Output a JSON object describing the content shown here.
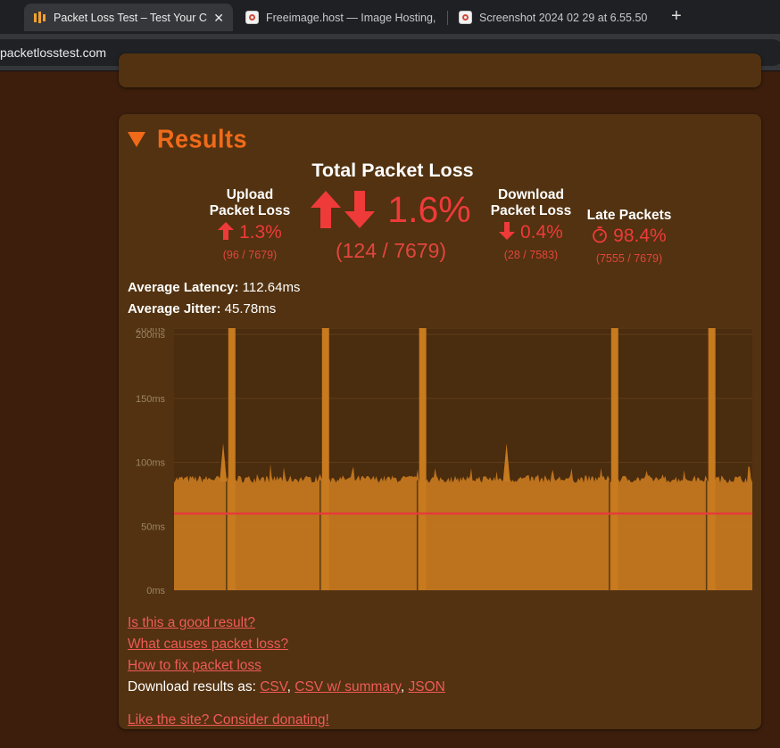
{
  "browser": {
    "tabs": [
      {
        "title": "Packet Loss Test – Test Your C",
        "active": true
      },
      {
        "title": "Freeimage.host — Image Hosting,",
        "active": false
      },
      {
        "title": "Screenshot 2024 02 29 at 6.55.50",
        "active": false
      }
    ],
    "close_symbol": "✕",
    "new_tab_symbol": "+",
    "url": "packetlosstest.com"
  },
  "results": {
    "heading": "Results",
    "total": {
      "label": "Total Packet Loss",
      "percent": "1.6%",
      "fraction": "(124 / 7679)"
    },
    "upload": {
      "label_line1": "Upload",
      "label_line2": "Packet Loss",
      "percent": "1.3%",
      "fraction": "(96 / 7679)"
    },
    "download": {
      "label_line1": "Download",
      "label_line2": "Packet Loss",
      "percent": "0.4%",
      "fraction": "(28 / 7583)"
    },
    "late": {
      "label": "Late Packets",
      "percent": "98.4%",
      "fraction": "(7555 / 7679)"
    },
    "average_latency": {
      "label": "Average Latency:",
      "value": "112.64ms"
    },
    "average_jitter": {
      "label": "Average Jitter:",
      "value": "45.78ms"
    }
  },
  "chart_data": {
    "type": "area",
    "y_tick_labels": [
      "0ms",
      "50ms",
      "100ms",
      "150ms",
      "200ms",
      "205ms"
    ],
    "y_ticks": [
      0,
      50,
      100,
      150,
      200,
      205
    ],
    "ylim": [
      0,
      205
    ],
    "typical_latency_ms": 86,
    "threshold_line_ms": 60,
    "spikes": [
      {
        "position": 0.1,
        "value": 205
      },
      {
        "position": 0.262,
        "value": 205
      },
      {
        "position": 0.43,
        "value": 205
      },
      {
        "position": 0.762,
        "value": 205
      },
      {
        "position": 0.93,
        "value": 205
      }
    ],
    "series_color": "#c77a1e",
    "threshold_color": "#e53b3b"
  },
  "links": {
    "good_result": "Is this a good result?",
    "causes": "What causes packet loss?",
    "fix": "How to fix packet loss",
    "download_prefix": "Download results as: ",
    "csv": "CSV",
    "csv_summary": "CSV w/ summary",
    "json": "JSON",
    "sep1": ", ",
    "sep2": ", ",
    "donate": "Like the site? Consider donating!"
  },
  "colors": {
    "accent_orange": "#f06a1a",
    "loss_red": "#ef3a3a",
    "panel_bg": "#523210",
    "page_bg": "#3d1e0c"
  }
}
